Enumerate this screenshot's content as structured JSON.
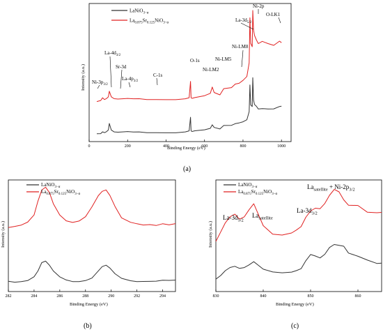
{
  "chart_data": [
    {
      "type": "line",
      "panel_label": "(a)",
      "xlabel": "Binding Energy (eV)",
      "ylabel": "Intensity (a.u.)",
      "xlim": [
        0,
        1050
      ],
      "xticks": [
        0,
        200,
        400,
        600,
        800,
        1000
      ],
      "legend_position": "top-left",
      "series": [
        {
          "name": "LaNiO3−α",
          "color": "#333333",
          "offset": 0,
          "x": [
            40,
            60,
            70,
            80,
            90,
            100,
            105,
            115,
            130,
            150,
            180,
            200,
            230,
            260,
            300,
            350,
            400,
            450,
            500,
            520,
            527,
            530,
            535,
            550,
            600,
            630,
            640,
            650,
            680,
            700,
            740,
            760,
            780,
            800,
            820,
            832,
            836,
            840,
            848,
            851,
            855,
            860,
            870,
            880,
            900,
            930,
            960,
            990,
            1000
          ],
          "y": [
            8,
            9,
            10,
            10,
            11,
            12,
            20,
            12,
            10,
            10,
            10,
            11,
            10,
            10,
            10,
            10,
            10,
            10,
            11,
            12,
            26,
            12,
            11,
            12,
            13,
            15,
            18,
            15,
            14,
            17,
            18,
            20,
            20,
            21,
            24,
            32,
            62,
            40,
            38,
            70,
            45,
            40,
            38,
            36,
            36,
            36,
            36,
            38,
            38
          ]
        },
        {
          "name": "La0.875Sr0.125NiO3−α",
          "color": "#e02020",
          "offset": 35,
          "x": [
            40,
            60,
            70,
            80,
            90,
            100,
            105,
            115,
            130,
            150,
            180,
            200,
            230,
            260,
            300,
            350,
            400,
            450,
            500,
            520,
            527,
            530,
            535,
            550,
            600,
            630,
            640,
            650,
            680,
            700,
            740,
            760,
            780,
            800,
            820,
            832,
            836,
            840,
            848,
            851,
            855,
            860,
            870,
            880,
            900,
            930,
            960,
            990,
            1000
          ],
          "y": [
            8,
            10,
            12,
            11,
            12,
            13,
            20,
            13,
            11,
            11,
            11,
            12,
            11,
            11,
            11,
            11,
            11,
            11,
            12,
            13,
            30,
            13,
            12,
            13,
            15,
            18,
            24,
            18,
            16,
            22,
            24,
            28,
            28,
            31,
            36,
            50,
            100,
            72,
            68,
            108,
            86,
            80,
            75,
            72,
            74,
            72,
            70,
            74,
            72
          ]
        }
      ],
      "annotations": [
        "Ni-3p3/2",
        "La-4d3/2",
        "Sr-3d",
        "La-4p3/2",
        "C-1s",
        "O-1s",
        "Ni-LM2",
        "Ni-LM5",
        "Ni-LM8",
        "La-3d5/2",
        "Ni-2p",
        "O-LK1"
      ]
    },
    {
      "type": "line",
      "panel_label": "(b)",
      "xlabel": "Binding Energy (eV)",
      "ylabel": "Intensity (a.u.)",
      "xlim": [
        282,
        295
      ],
      "xticks": [
        282,
        284,
        286,
        288,
        290,
        292,
        294
      ],
      "legend_position": "top-left",
      "series": [
        {
          "name": "LaNiO3−α",
          "color": "#333333",
          "x": [
            282,
            282.5,
            283,
            283.5,
            284,
            284.3,
            284.6,
            284.9,
            285.2,
            285.5,
            286,
            286.5,
            287,
            287.5,
            288,
            288.5,
            289,
            289.3,
            289.6,
            289.9,
            290.3,
            290.8,
            291.5,
            292,
            292.5,
            293,
            293.5,
            294,
            294.5,
            295
          ],
          "y": [
            3,
            2.5,
            3,
            3.5,
            6,
            10,
            16,
            17,
            14,
            10,
            6,
            4,
            3,
            3,
            3.5,
            5,
            10,
            13,
            14,
            12,
            8,
            5,
            3.5,
            3,
            3,
            2.8,
            2.6,
            3,
            2.7,
            3
          ]
        },
        {
          "name": "La0.875Sr0.125NiO3−α",
          "color": "#e02020",
          "x": [
            282,
            282.5,
            283,
            283.5,
            284,
            284.3,
            284.6,
            284.9,
            285.2,
            285.5,
            286,
            286.5,
            287,
            287.5,
            288,
            288.5,
            289,
            289.3,
            289.6,
            289.9,
            290.3,
            290.8,
            291.5,
            292,
            292.5,
            293,
            293.5,
            294,
            294.5,
            295
          ],
          "y": [
            43,
            44,
            45,
            47,
            52,
            62,
            70,
            72,
            68,
            60,
            52,
            48,
            47,
            48,
            51,
            58,
            66,
            69,
            70,
            66,
            58,
            50,
            47,
            46,
            45,
            45,
            44,
            45,
            44,
            45
          ]
        }
      ]
    },
    {
      "type": "line",
      "panel_label": "(c)",
      "xlabel": "Binding Energy (eV)",
      "ylabel": "Intensity (a.u.)",
      "xlim": [
        830,
        865
      ],
      "xticks": [
        830,
        840,
        850,
        860
      ],
      "legend_position": "top-left",
      "series": [
        {
          "name": "LaNiO3−α",
          "color": "#333333",
          "x": [
            830,
            831,
            832,
            833,
            834,
            835,
            836,
            837,
            838,
            839,
            840,
            842,
            844,
            846,
            847,
            848,
            849,
            850,
            851,
            852,
            853,
            854,
            855,
            856,
            857,
            858,
            860,
            862,
            864,
            865
          ],
          "y": [
            4,
            6,
            9,
            11,
            12,
            11,
            12,
            14,
            16,
            13,
            10,
            8,
            8,
            9,
            10,
            11,
            16,
            20,
            19,
            18,
            21,
            26,
            28,
            27,
            26,
            21,
            19,
            17,
            15,
            15
          ]
        },
        {
          "name": "La0.875Sr0.125NiO3−α",
          "color": "#e02020",
          "x": [
            830,
            831,
            832,
            833,
            834,
            835,
            836,
            837,
            838,
            839,
            840,
            842,
            844,
            846,
            847,
            848,
            849,
            850,
            851,
            852,
            853,
            854,
            855,
            856,
            857,
            858,
            860,
            862,
            864,
            865
          ],
          "y": [
            30,
            36,
            42,
            46,
            48,
            45,
            47,
            52,
            56,
            48,
            40,
            34,
            34,
            36,
            38,
            40,
            46,
            50,
            52,
            52,
            56,
            62,
            66,
            64,
            58,
            54,
            54,
            50,
            50,
            50
          ]
        }
      ]
    }
  ],
  "panel_a": {
    "legend": [
      "LaNiO3−α",
      "La0.875Sr0.125NiO3−α"
    ],
    "annotations": {
      "ni3p": "Ni-3p3/2",
      "la4d": "La-4d3/2",
      "sr3d": "Sr-3d",
      "la4p": "La-4p3/2",
      "c1s": "C-1s",
      "o1s": "O-1s",
      "nilm2": "Ni-LM2",
      "nilm5": "Ni-LM5",
      "nilm8": "Ni-LM8",
      "la3d": "La-3d5/2",
      "ni2p": "Ni-2p",
      "olk1": "O-LK1"
    },
    "xlabel": "Binding Energy (eV)",
    "ylabel": "Intensity (a.u.)",
    "panel_label": "(a)"
  },
  "panel_b": {
    "legend": [
      "LaNiO3−α",
      "La0.875Sr0.125NiO3−α"
    ],
    "xlabel": "Binding Energy (eV)",
    "ylabel": "Intensity (a.u.)",
    "panel_label": "(b)"
  },
  "panel_c": {
    "legend": [
      "LaNiO3−α",
      "La0.875Sr0.125NiO3−α"
    ],
    "annotations": {
      "la3d52": "La-3d5/2",
      "lasat": "Lasatellite",
      "la3d32": "La-3d3/2",
      "lasatni": "Lasatellite + Ni-2p3/2"
    },
    "xlabel": "Binding Energy (eV)",
    "ylabel": "Intensity (a.u.)",
    "panel_label": "(c)"
  }
}
